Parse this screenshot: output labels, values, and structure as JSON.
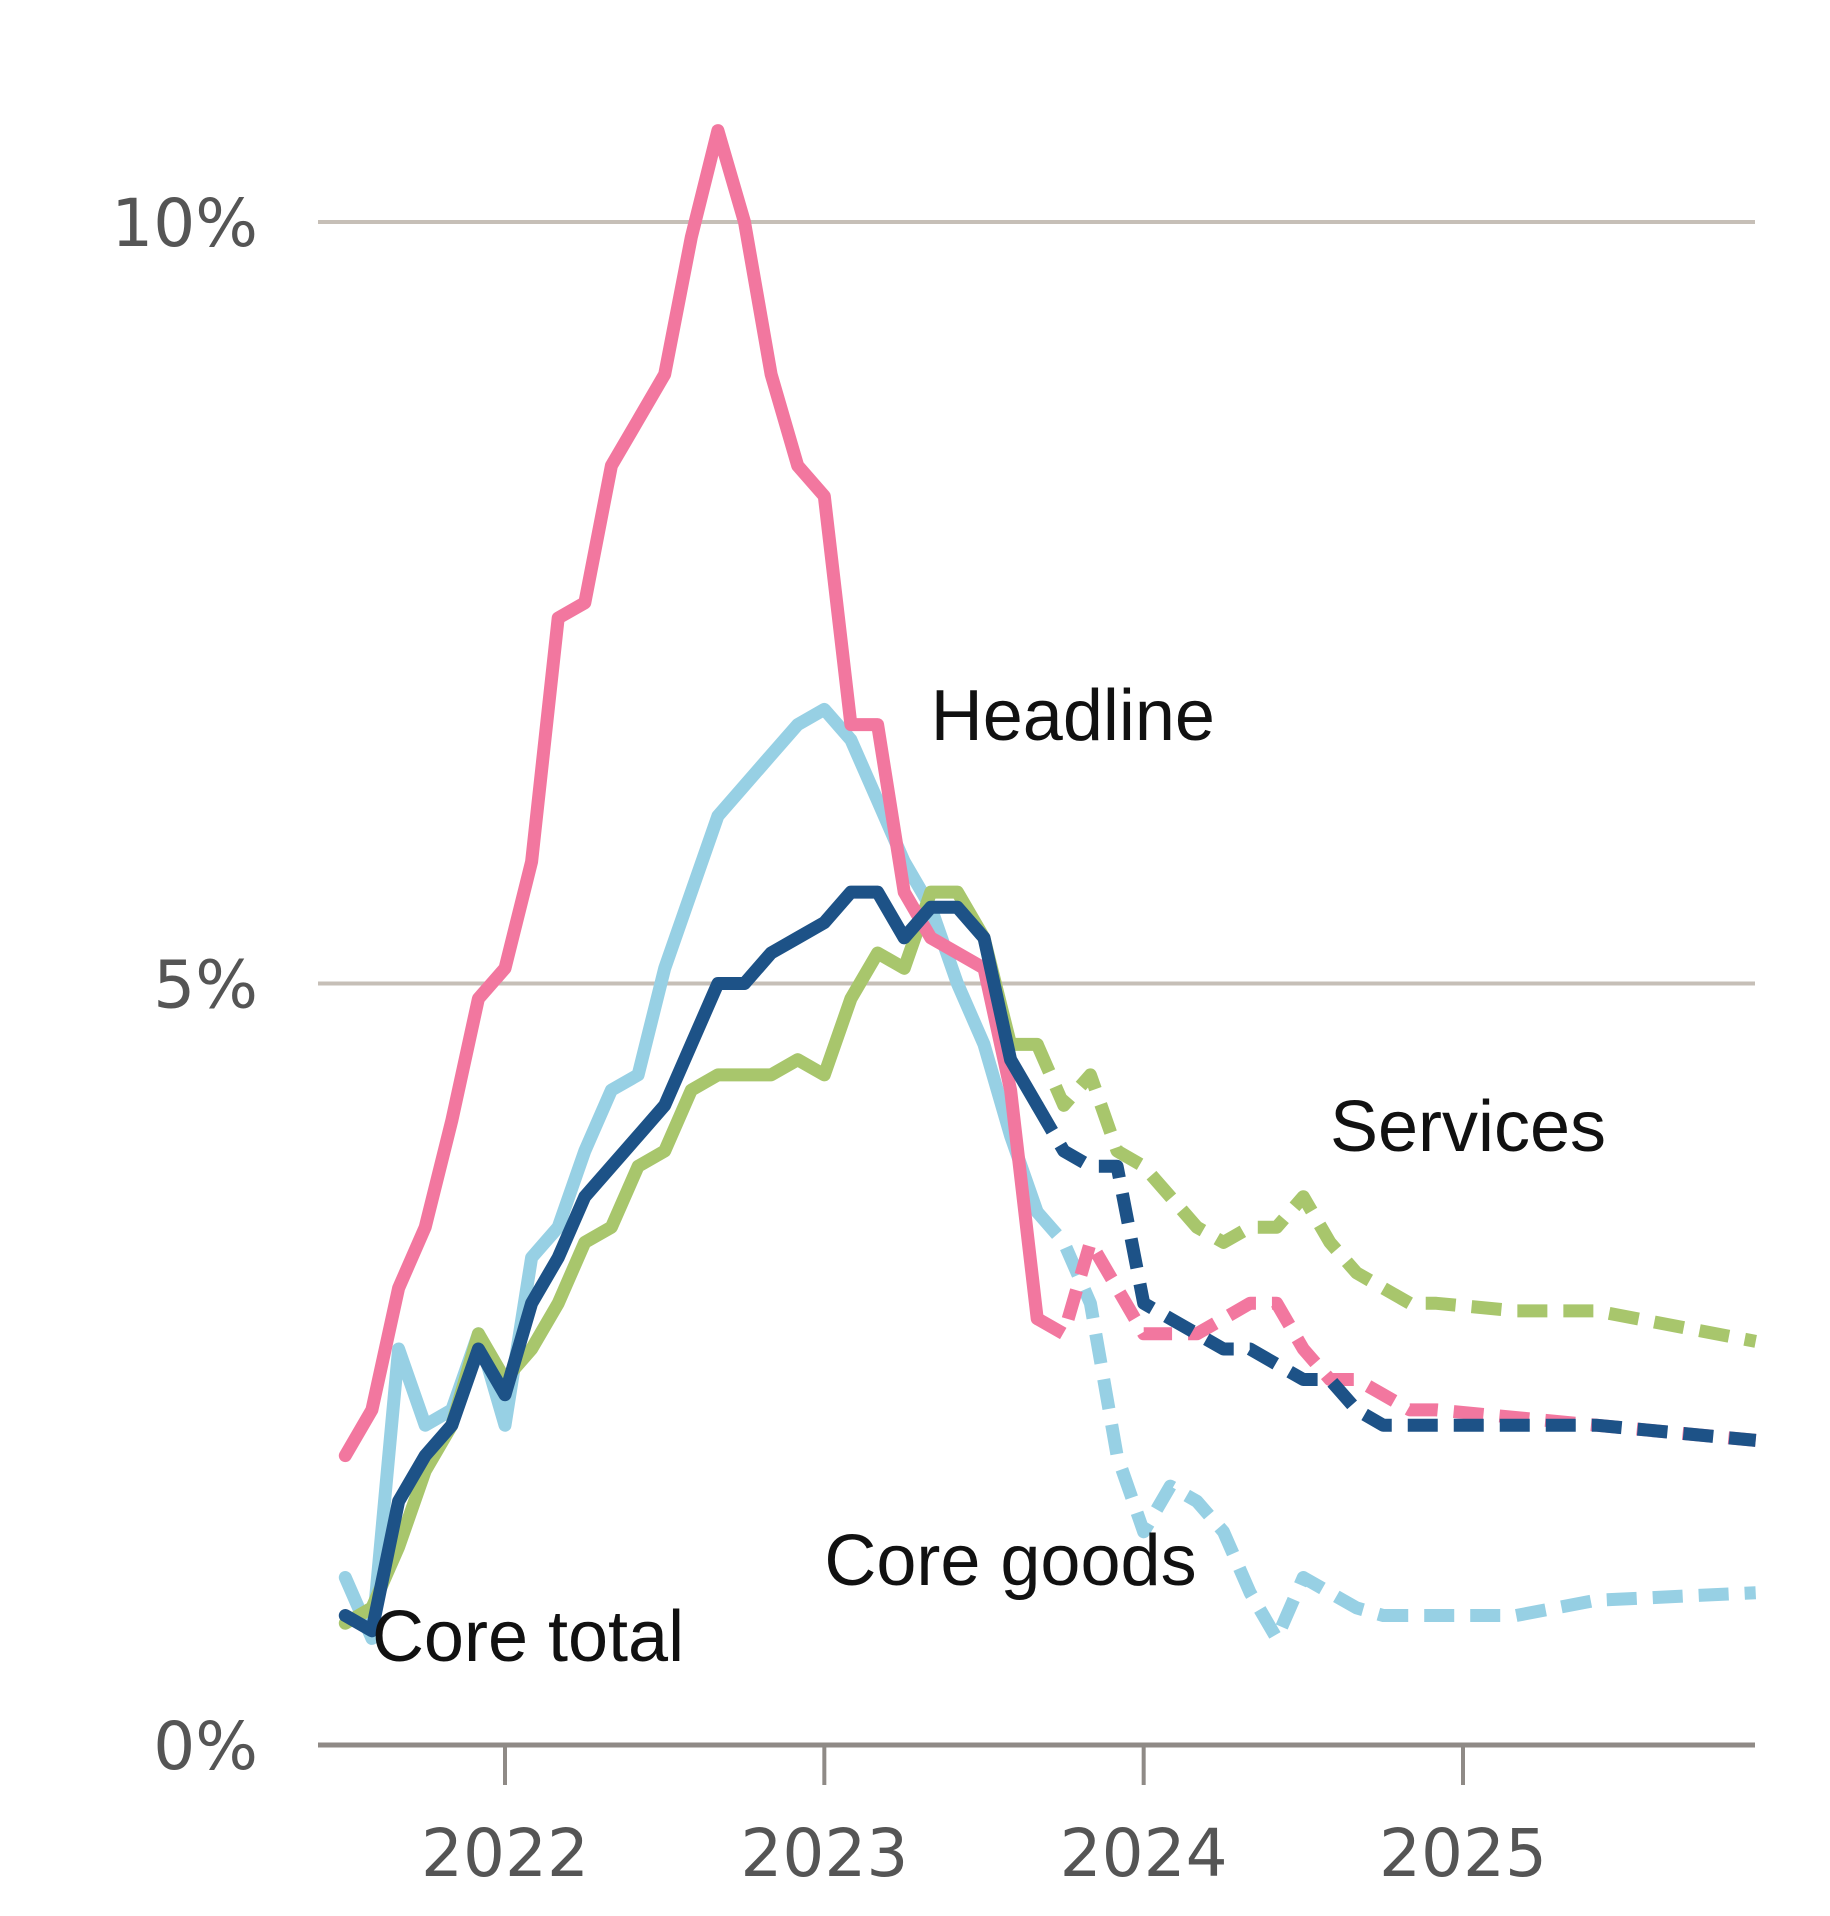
{
  "chart_data": {
    "type": "line",
    "title": "",
    "xlabel": "",
    "ylabel": "",
    "ylim": [
      0,
      10.5
    ],
    "xlim": [
      "2021-07",
      "2025-12"
    ],
    "grid": true,
    "y_ticks": [
      {
        "value": 0,
        "label": "0%"
      },
      {
        "value": 5,
        "label": "5%"
      },
      {
        "value": 10,
        "label": "10%"
      }
    ],
    "x_ticks": [
      {
        "value": "2022-01",
        "label": "2022"
      },
      {
        "value": "2023-01",
        "label": "2023"
      },
      {
        "value": "2024-01",
        "label": "2024"
      },
      {
        "value": "2025-01",
        "label": "2025"
      }
    ],
    "solid_dashed_note": "solid = actual, dashed = forecast",
    "series": [
      {
        "name": "Headline",
        "label": "Headline",
        "color": "#f2779f",
        "actual": [
          [
            "2021-07",
            1.9
          ],
          [
            "2021-08",
            2.2
          ],
          [
            "2021-09",
            3.0
          ],
          [
            "2021-10",
            3.4
          ],
          [
            "2021-11",
            4.1
          ],
          [
            "2021-12",
            4.9
          ],
          [
            "2022-01",
            5.1
          ],
          [
            "2022-02",
            5.8
          ],
          [
            "2022-03",
            7.4
          ],
          [
            "2022-04",
            7.5
          ],
          [
            "2022-05",
            8.4
          ],
          [
            "2022-06",
            8.7
          ],
          [
            "2022-07",
            9.0
          ],
          [
            "2022-08",
            9.9
          ],
          [
            "2022-09",
            10.6
          ],
          [
            "2022-10",
            10.0
          ],
          [
            "2022-11",
            9.0
          ],
          [
            "2022-12",
            8.4
          ],
          [
            "2023-01",
            8.2
          ],
          [
            "2023-02",
            6.7
          ],
          [
            "2023-03",
            6.7
          ],
          [
            "2023-04",
            5.6
          ],
          [
            "2023-05",
            5.3
          ],
          [
            "2023-06",
            5.2
          ],
          [
            "2023-07",
            5.1
          ],
          [
            "2023-08",
            4.3
          ],
          [
            "2023-09",
            2.8
          ]
        ],
        "forecast": [
          [
            "2023-09",
            2.8
          ],
          [
            "2023-10",
            2.7
          ],
          [
            "2023-11",
            3.3
          ],
          [
            "2023-12",
            3.0
          ],
          [
            "2024-01",
            2.7
          ],
          [
            "2024-02",
            2.7
          ],
          [
            "2024-03",
            2.7
          ],
          [
            "2024-04",
            2.8
          ],
          [
            "2024-05",
            2.9
          ],
          [
            "2024-06",
            2.9
          ],
          [
            "2024-07",
            2.6
          ],
          [
            "2024-08",
            2.4
          ],
          [
            "2024-09",
            2.4
          ],
          [
            "2024-10",
            2.3
          ],
          [
            "2024-11",
            2.2
          ],
          [
            "2024-12",
            2.2
          ],
          [
            "2025-06",
            2.1
          ],
          [
            "2025-12",
            2.0
          ]
        ]
      },
      {
        "name": "Core goods",
        "label": "Core goods",
        "color": "#97d0e4",
        "actual": [
          [
            "2021-07",
            1.1
          ],
          [
            "2021-08",
            0.7
          ],
          [
            "2021-09",
            2.6
          ],
          [
            "2021-10",
            2.1
          ],
          [
            "2021-11",
            2.2
          ],
          [
            "2021-12",
            2.7
          ],
          [
            "2022-01",
            2.1
          ],
          [
            "2022-02",
            3.2
          ],
          [
            "2022-03",
            3.4
          ],
          [
            "2022-04",
            3.9
          ],
          [
            "2022-05",
            4.3
          ],
          [
            "2022-06",
            4.4
          ],
          [
            "2022-07",
            5.1
          ],
          [
            "2022-08",
            5.6
          ],
          [
            "2022-09",
            6.1
          ],
          [
            "2022-10",
            6.3
          ],
          [
            "2022-11",
            6.5
          ],
          [
            "2022-12",
            6.7
          ],
          [
            "2023-01",
            6.8
          ],
          [
            "2023-02",
            6.6
          ],
          [
            "2023-03",
            6.2
          ],
          [
            "2023-04",
            5.8
          ],
          [
            "2023-05",
            5.5
          ],
          [
            "2023-06",
            5.0
          ],
          [
            "2023-07",
            4.6
          ],
          [
            "2023-08",
            4.0
          ],
          [
            "2023-09",
            3.5
          ]
        ],
        "forecast": [
          [
            "2023-09",
            3.5
          ],
          [
            "2023-10",
            3.3
          ],
          [
            "2023-11",
            2.9
          ],
          [
            "2023-12",
            1.9
          ],
          [
            "2024-01",
            1.4
          ],
          [
            "2024-02",
            1.7
          ],
          [
            "2024-03",
            1.6
          ],
          [
            "2024-04",
            1.4
          ],
          [
            "2024-05",
            1.0
          ],
          [
            "2024-06",
            0.7
          ],
          [
            "2024-07",
            1.1
          ],
          [
            "2024-08",
            1.0
          ],
          [
            "2024-09",
            0.9
          ],
          [
            "2024-10",
            0.85
          ],
          [
            "2024-11",
            0.85
          ],
          [
            "2024-12",
            0.85
          ],
          [
            "2025-03",
            0.85
          ],
          [
            "2025-06",
            0.95
          ],
          [
            "2025-12",
            1.0
          ]
        ]
      },
      {
        "name": "Services",
        "label": "Services",
        "color": "#a8c66c",
        "actual": [
          [
            "2021-07",
            0.8
          ],
          [
            "2021-08",
            0.9
          ],
          [
            "2021-09",
            1.3
          ],
          [
            "2021-10",
            1.8
          ],
          [
            "2021-11",
            2.1
          ],
          [
            "2021-12",
            2.7
          ],
          [
            "2022-01",
            2.4
          ],
          [
            "2022-02",
            2.6
          ],
          [
            "2022-03",
            2.9
          ],
          [
            "2022-04",
            3.3
          ],
          [
            "2022-05",
            3.4
          ],
          [
            "2022-06",
            3.8
          ],
          [
            "2022-07",
            3.9
          ],
          [
            "2022-08",
            4.3
          ],
          [
            "2022-09",
            4.4
          ],
          [
            "2022-10",
            4.4
          ],
          [
            "2022-11",
            4.4
          ],
          [
            "2022-12",
            4.5
          ],
          [
            "2023-01",
            4.4
          ],
          [
            "2023-02",
            4.9
          ],
          [
            "2023-03",
            5.2
          ],
          [
            "2023-04",
            5.1
          ],
          [
            "2023-05",
            5.6
          ],
          [
            "2023-06",
            5.6
          ],
          [
            "2023-07",
            5.3
          ],
          [
            "2023-08",
            4.6
          ],
          [
            "2023-09",
            4.6
          ]
        ],
        "forecast": [
          [
            "2023-09",
            4.6
          ],
          [
            "2023-10",
            4.2
          ],
          [
            "2023-11",
            4.4
          ],
          [
            "2023-12",
            3.9
          ],
          [
            "2024-01",
            3.8
          ],
          [
            "2024-02",
            3.6
          ],
          [
            "2024-03",
            3.4
          ],
          [
            "2024-04",
            3.3
          ],
          [
            "2024-05",
            3.4
          ],
          [
            "2024-06",
            3.4
          ],
          [
            "2024-07",
            3.6
          ],
          [
            "2024-08",
            3.3
          ],
          [
            "2024-09",
            3.1
          ],
          [
            "2024-10",
            3.0
          ],
          [
            "2024-11",
            2.9
          ],
          [
            "2024-12",
            2.9
          ],
          [
            "2025-03",
            2.85
          ],
          [
            "2025-06",
            2.85
          ],
          [
            "2025-12",
            2.65
          ]
        ]
      },
      {
        "name": "Core total",
        "label": "Core total",
        "color": "#1d5287",
        "actual": [
          [
            "2021-07",
            0.85
          ],
          [
            "2021-08",
            0.75
          ],
          [
            "2021-09",
            1.6
          ],
          [
            "2021-10",
            1.9
          ],
          [
            "2021-11",
            2.1
          ],
          [
            "2021-12",
            2.6
          ],
          [
            "2022-01",
            2.3
          ],
          [
            "2022-02",
            2.9
          ],
          [
            "2022-03",
            3.2
          ],
          [
            "2022-04",
            3.6
          ],
          [
            "2022-05",
            3.8
          ],
          [
            "2022-06",
            4.0
          ],
          [
            "2022-07",
            4.2
          ],
          [
            "2022-08",
            4.6
          ],
          [
            "2022-09",
            5.0
          ],
          [
            "2022-10",
            5.0
          ],
          [
            "2022-11",
            5.2
          ],
          [
            "2022-12",
            5.3
          ],
          [
            "2023-01",
            5.4
          ],
          [
            "2023-02",
            5.6
          ],
          [
            "2023-03",
            5.6
          ],
          [
            "2023-04",
            5.3
          ],
          [
            "2023-05",
            5.5
          ],
          [
            "2023-06",
            5.5
          ],
          [
            "2023-07",
            5.3
          ],
          [
            "2023-08",
            4.5
          ],
          [
            "2023-09",
            4.2
          ]
        ],
        "forecast": [
          [
            "2023-09",
            4.2
          ],
          [
            "2023-10",
            3.9
          ],
          [
            "2023-11",
            3.8
          ],
          [
            "2023-12",
            3.8
          ],
          [
            "2024-01",
            2.9
          ],
          [
            "2024-02",
            2.8
          ],
          [
            "2024-03",
            2.7
          ],
          [
            "2024-04",
            2.6
          ],
          [
            "2024-05",
            2.6
          ],
          [
            "2024-06",
            2.5
          ],
          [
            "2024-07",
            2.4
          ],
          [
            "2024-08",
            2.4
          ],
          [
            "2024-09",
            2.2
          ],
          [
            "2024-10",
            2.1
          ],
          [
            "2024-11",
            2.1
          ],
          [
            "2024-12",
            2.1
          ],
          [
            "2025-06",
            2.1
          ],
          [
            "2025-12",
            2.0
          ]
        ]
      }
    ],
    "series_label_positions": {
      "Headline": [
        "2023-05",
        6.6
      ],
      "Core goods": [
        "2023-01",
        1.05
      ],
      "Services": [
        "2024-08",
        3.9
      ],
      "Core total": [
        "2021-08",
        0.55
      ]
    },
    "draw_order": [
      "Core goods",
      "Services",
      "Headline",
      "Core total"
    ]
  }
}
